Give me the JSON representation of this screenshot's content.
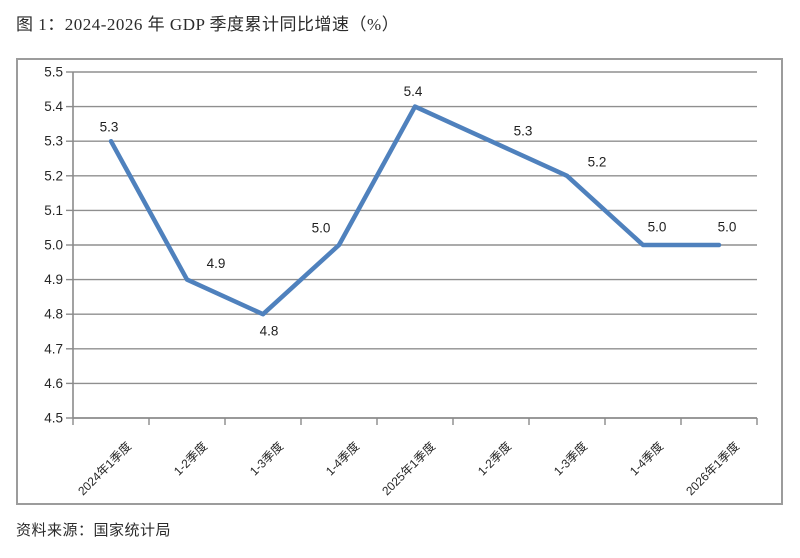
{
  "page": {
    "title": "图 1：2024-2026 年 GDP 季度累计同比增速（%）",
    "source": "资料来源：国家统计局"
  },
  "chart_data": {
    "type": "line",
    "title": "图 1：2024-2026 年 GDP 季度累计同比增速（%）",
    "categories": [
      "2024年1季度",
      "1-2季度",
      "1-3季度",
      "1-4季度",
      "2025年1季度",
      "1-2季度",
      "1-3季度",
      "1-4季度",
      "2026年1季度"
    ],
    "values": [
      5.3,
      4.9,
      4.8,
      5.0,
      5.4,
      5.3,
      5.2,
      5.0,
      5.0
    ],
    "data_labels": [
      "5.3",
      "4.9",
      "4.8",
      "5.0",
      "5.4",
      "5.3",
      "5.2",
      "5.0",
      "5.0"
    ],
    "xlabel": "",
    "ylabel": "",
    "ylim": [
      4.5,
      5.5
    ],
    "y_tick_step": 0.1,
    "y_ticks": [
      "5.5",
      "5.4",
      "5.3",
      "5.2",
      "5.1",
      "5.0",
      "4.9",
      "4.8",
      "4.7",
      "4.6",
      "4.5"
    ],
    "grid": true,
    "legend": "none",
    "colors": {
      "line": "#4F81BD",
      "gridline": "#8f8f8f",
      "axis": "#8a8a8a",
      "tick_text": "#262626",
      "data_label_text": "#1f1f1f"
    }
  }
}
